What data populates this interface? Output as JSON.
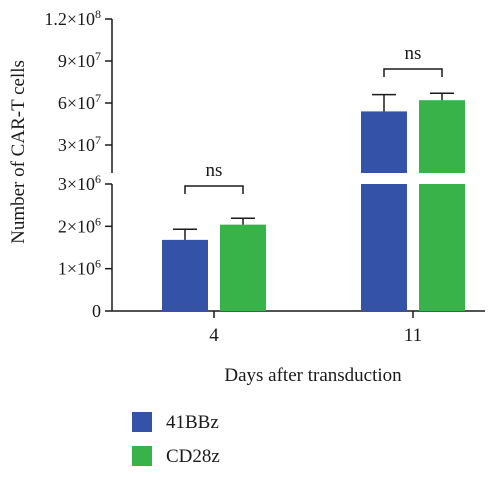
{
  "chart_data": {
    "type": "bar",
    "ylabel": "Number of CAR-T cells",
    "xlabel": "Days after transduction",
    "categories": [
      "4",
      "11"
    ],
    "series": [
      {
        "name": "41BBz",
        "color": "#3352a8",
        "values": [
          1680000,
          54000000
        ],
        "errors": [
          250000,
          12000000
        ]
      },
      {
        "name": "CD28z",
        "color": "#38b34a",
        "values": [
          2040000,
          62000000
        ],
        "errors": [
          150000,
          5000000
        ]
      }
    ],
    "y_axis_broken": true,
    "lower_segment": {
      "ylim": [
        0,
        3000000
      ],
      "ticks": [
        {
          "mant": "0",
          "exp": ""
        },
        {
          "mant": "1×10",
          "exp": "6"
        },
        {
          "mant": "2×10",
          "exp": "6"
        },
        {
          "mant": "3×10",
          "exp": "6"
        }
      ]
    },
    "upper_segment": {
      "ylim": [
        10000000,
        120000000
      ],
      "ticks": [
        {
          "mant": "3×10",
          "exp": "7"
        },
        {
          "mant": "6×10",
          "exp": "7"
        },
        {
          "mant": "9×10",
          "exp": "7"
        },
        {
          "mant": "1.2×10",
          "exp": "8"
        }
      ]
    },
    "annotations": [
      {
        "text": "ns",
        "category": "4"
      },
      {
        "text": "ns",
        "category": "11"
      }
    ],
    "legend_position": "bottom-left"
  }
}
